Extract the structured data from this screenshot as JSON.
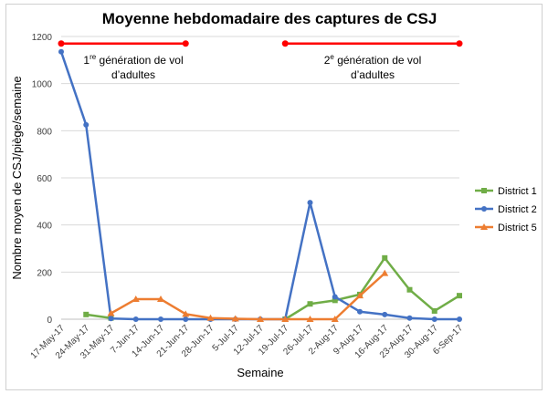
{
  "chart_data": {
    "type": "line",
    "title": "Moyenne hebdomadaire des captures de CSJ",
    "xlabel": "Semaine",
    "ylabel": "Nombre moyen de CSJ/piège/semaine",
    "ylim": [
      0,
      1200
    ],
    "yticks": [
      0,
      200,
      400,
      600,
      800,
      1000,
      1200
    ],
    "grid": true,
    "legend_position": "right",
    "categories": [
      "17-May-17",
      "24-May-17",
      "31-May-17",
      "7-Jun-17",
      "14-Jun-17",
      "21-Jun-17",
      "28-Jun-17",
      "5-Jul-17",
      "12-Jul-17",
      "19-Jul-17",
      "26-Jul-17",
      "2-Aug-17",
      "9-Aug-17",
      "16-Aug-17",
      "23-Aug-17",
      "30-Aug-17",
      "6-Sep-17"
    ],
    "series": [
      {
        "name": "District 1",
        "color": "#70ad47",
        "marker": "square",
        "values": [
          null,
          20,
          5,
          null,
          null,
          null,
          null,
          null,
          null,
          0,
          65,
          80,
          105,
          260,
          125,
          35,
          100
        ]
      },
      {
        "name": "District 2",
        "color": "#4472c4",
        "marker": "diamond",
        "values": [
          1135,
          825,
          3,
          0,
          0,
          0,
          0,
          0,
          0,
          0,
          495,
          95,
          32,
          20,
          5,
          0,
          0
        ]
      },
      {
        "name": "District 5",
        "color": "#ed7d31",
        "marker": "triangle",
        "values": [
          null,
          null,
          25,
          85,
          85,
          22,
          5,
          2,
          0,
          0,
          0,
          0,
          100,
          195,
          null,
          null,
          null
        ]
      }
    ],
    "annotations": [
      {
        "base": "1",
        "sup": "re",
        "rest": " génération de vol",
        "line2": "d’adultes",
        "from": "17-May-17",
        "to": "21-Jun-17",
        "y": 1170,
        "color": "#ff0000"
      },
      {
        "base": "2",
        "sup": "e",
        "rest": " génération de vol",
        "line2": "d’adultes",
        "from": "19-Jul-17",
        "to": "6-Sep-17",
        "y": 1170,
        "color": "#ff0000"
      }
    ]
  }
}
